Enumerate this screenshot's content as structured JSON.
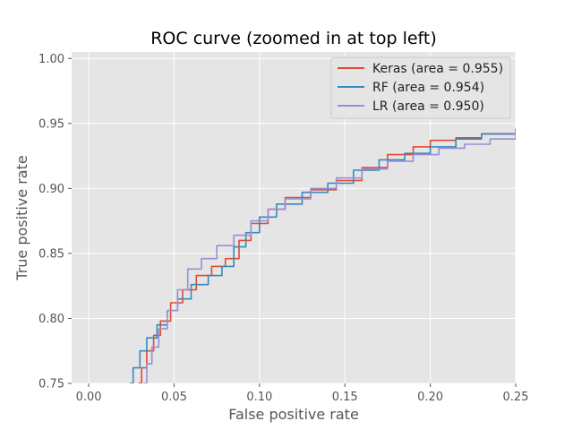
{
  "chart_data": {
    "type": "line",
    "title": "ROC curve (zoomed in at top left)",
    "xlabel": "False positive rate",
    "ylabel": "True positive rate",
    "xlim": [
      -0.01,
      0.25
    ],
    "ylim": [
      0.75,
      1.005
    ],
    "xticks": [
      "0.00",
      "0.05",
      "0.10",
      "0.15",
      "0.20",
      "0.25"
    ],
    "yticks": [
      "0.75",
      "0.80",
      "0.85",
      "0.90",
      "0.95",
      "1.00"
    ],
    "grid": true,
    "legend_position": "top-right",
    "series": [
      {
        "name": "Keras (area = 0.955)",
        "color": "#E24A33",
        "points": [
          [
            0.029,
            0.75
          ],
          [
            0.031,
            0.762
          ],
          [
            0.034,
            0.775
          ],
          [
            0.038,
            0.787
          ],
          [
            0.042,
            0.798
          ],
          [
            0.048,
            0.812
          ],
          [
            0.055,
            0.822
          ],
          [
            0.063,
            0.833
          ],
          [
            0.072,
            0.84
          ],
          [
            0.08,
            0.846
          ],
          [
            0.088,
            0.86
          ],
          [
            0.095,
            0.873
          ],
          [
            0.105,
            0.884
          ],
          [
            0.115,
            0.893
          ],
          [
            0.13,
            0.899
          ],
          [
            0.145,
            0.906
          ],
          [
            0.16,
            0.916
          ],
          [
            0.175,
            0.926
          ],
          [
            0.19,
            0.932
          ],
          [
            0.2,
            0.937
          ],
          [
            0.215,
            0.939
          ],
          [
            0.23,
            0.942
          ],
          [
            0.25,
            0.944
          ]
        ]
      },
      {
        "name": "RF (area = 0.954)",
        "color": "#348ABD",
        "points": [
          [
            0.024,
            0.75
          ],
          [
            0.026,
            0.762
          ],
          [
            0.03,
            0.775
          ],
          [
            0.034,
            0.785
          ],
          [
            0.04,
            0.795
          ],
          [
            0.046,
            0.806
          ],
          [
            0.052,
            0.815
          ],
          [
            0.06,
            0.826
          ],
          [
            0.07,
            0.833
          ],
          [
            0.078,
            0.84
          ],
          [
            0.085,
            0.855
          ],
          [
            0.092,
            0.866
          ],
          [
            0.1,
            0.878
          ],
          [
            0.11,
            0.888
          ],
          [
            0.125,
            0.897
          ],
          [
            0.14,
            0.904
          ],
          [
            0.155,
            0.914
          ],
          [
            0.17,
            0.922
          ],
          [
            0.185,
            0.927
          ],
          [
            0.2,
            0.932
          ],
          [
            0.215,
            0.938
          ],
          [
            0.23,
            0.942
          ],
          [
            0.25,
            0.946
          ]
        ]
      },
      {
        "name": "LR (area = 0.950)",
        "color": "#988ED5",
        "points": [
          [
            0.032,
            0.75
          ],
          [
            0.034,
            0.765
          ],
          [
            0.037,
            0.778
          ],
          [
            0.041,
            0.792
          ],
          [
            0.046,
            0.806
          ],
          [
            0.052,
            0.822
          ],
          [
            0.058,
            0.838
          ],
          [
            0.066,
            0.846
          ],
          [
            0.075,
            0.856
          ],
          [
            0.085,
            0.864
          ],
          [
            0.095,
            0.875
          ],
          [
            0.105,
            0.884
          ],
          [
            0.115,
            0.892
          ],
          [
            0.13,
            0.9
          ],
          [
            0.145,
            0.908
          ],
          [
            0.16,
            0.915
          ],
          [
            0.175,
            0.921
          ],
          [
            0.19,
            0.926
          ],
          [
            0.205,
            0.931
          ],
          [
            0.22,
            0.934
          ],
          [
            0.235,
            0.938
          ],
          [
            0.25,
            0.945
          ]
        ]
      }
    ]
  }
}
